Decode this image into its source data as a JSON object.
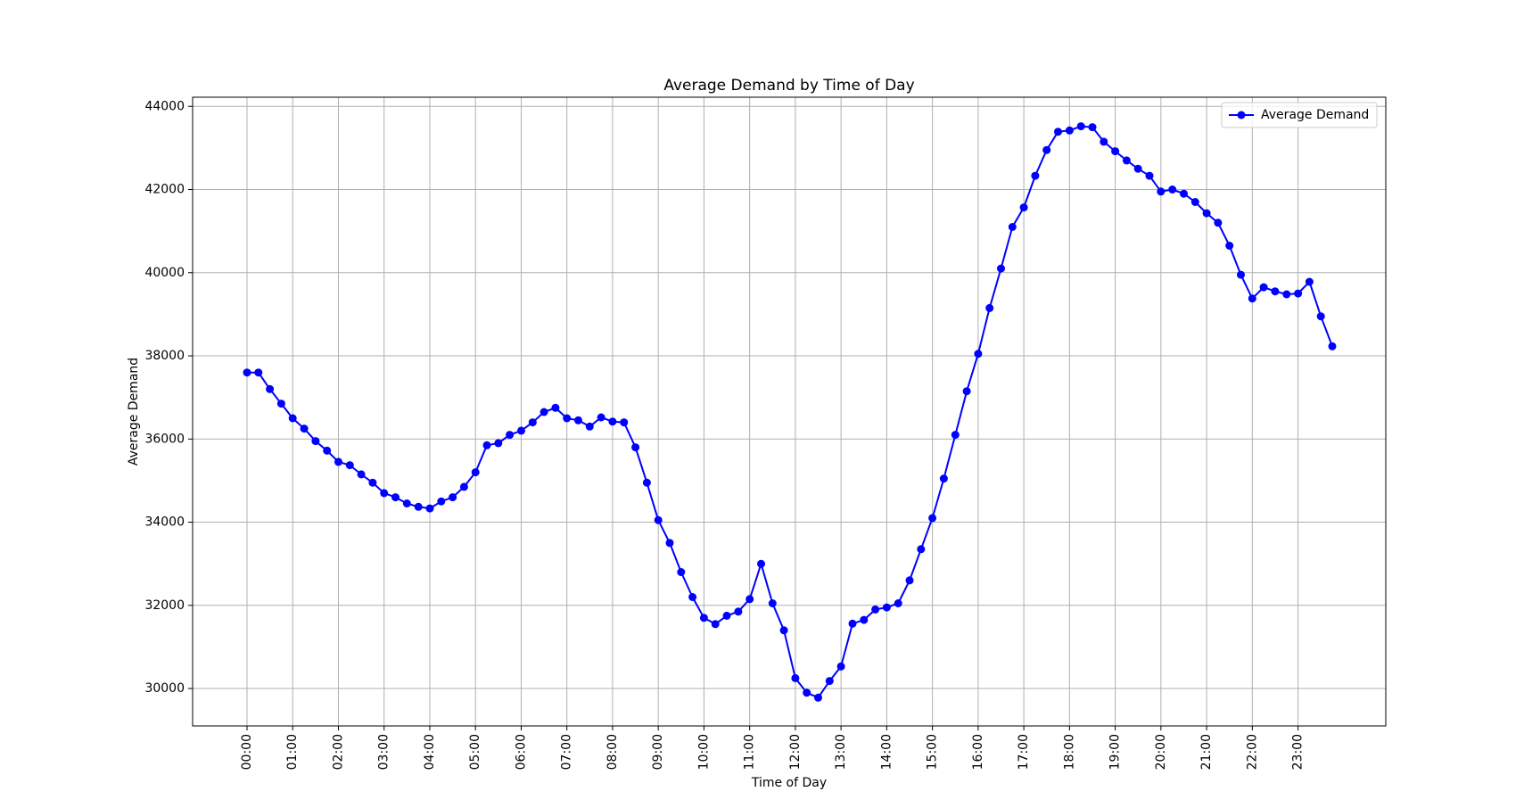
{
  "chart_data": {
    "type": "line",
    "title": "Average Demand by Time of Day",
    "xlabel": "Time of Day",
    "ylabel": "Average Demand",
    "x_tick_labels": [
      "00:00",
      "01:00",
      "02:00",
      "03:00",
      "04:00",
      "05:00",
      "06:00",
      "07:00",
      "08:00",
      "09:00",
      "10:00",
      "11:00",
      "12:00",
      "13:00",
      "14:00",
      "15:00",
      "16:00",
      "17:00",
      "18:00",
      "19:00",
      "20:00",
      "21:00",
      "22:00",
      "23:00"
    ],
    "y_ticks": [
      30000,
      32000,
      34000,
      36000,
      38000,
      40000,
      42000,
      44000
    ],
    "ylim": [
      29100,
      44220
    ],
    "grid": true,
    "legend_position": "top-right",
    "series": [
      {
        "name": "Average Demand",
        "color": "#0000ff",
        "marker": "circle",
        "x_start": "00:00",
        "x_interval": "15 min",
        "values": [
          37600,
          37600,
          37200,
          36850,
          36500,
          36250,
          35950,
          35720,
          35450,
          35370,
          35150,
          34950,
          34700,
          34600,
          34450,
          34370,
          34330,
          34500,
          34600,
          34850,
          35200,
          35850,
          35900,
          36100,
          36200,
          36400,
          36650,
          36750,
          36500,
          36450,
          36300,
          36520,
          36420,
          36400,
          35800,
          34950,
          34050,
          33500,
          32800,
          32200,
          31700,
          31550,
          31750,
          31850,
          32150,
          33000,
          32050,
          31400,
          30250,
          29900,
          29780,
          30180,
          30530,
          31560,
          31650,
          31900,
          31950,
          32050,
          32600,
          33350,
          34100,
          35050,
          36100,
          37150,
          38050,
          39150,
          40100,
          41100,
          41570,
          42330,
          42950,
          43390,
          43420,
          43520,
          43500,
          43150,
          42920,
          42700,
          42500,
          42330,
          41950,
          42000,
          41900,
          41700,
          41430,
          41200,
          40650,
          39950,
          39380,
          39650,
          39550,
          39480,
          39500,
          39780,
          38950,
          38230
        ]
      }
    ]
  }
}
